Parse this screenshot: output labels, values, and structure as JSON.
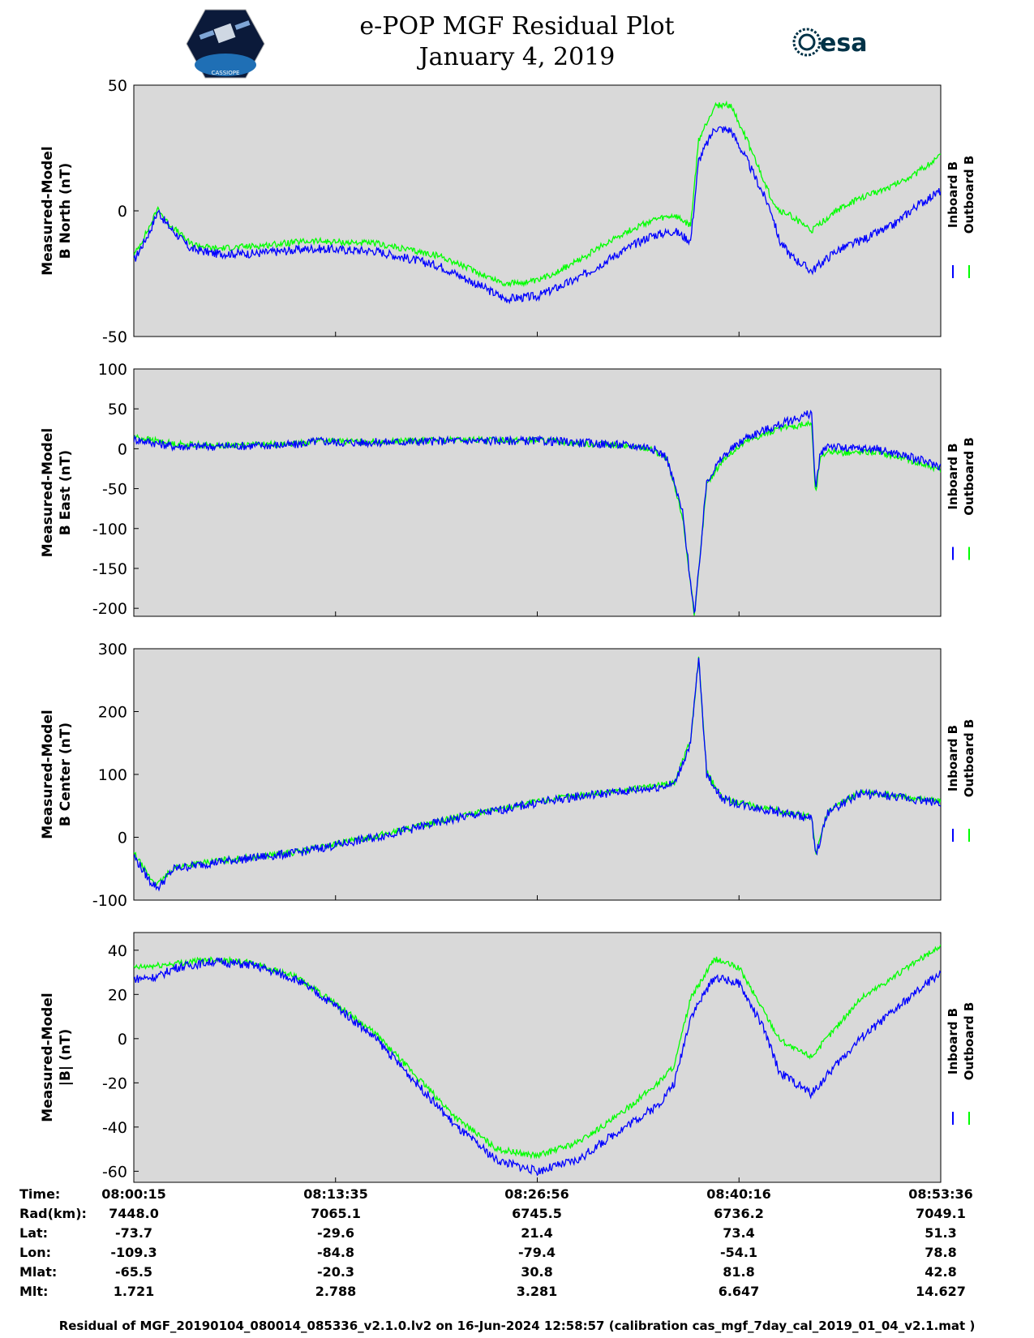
{
  "header": {
    "title_line1": "e-POP MGF Residual Plot",
    "title_line2": "January 4, 2019",
    "left_logo_text": "CASSIOPE",
    "right_logo_text": "esa"
  },
  "colors": {
    "inboard": "#0000ff",
    "outboard": "#00ff00",
    "plot_background": "#d9d9d9"
  },
  "chart_data": [
    {
      "type": "line",
      "ylabel_line1": "Measured-Model",
      "ylabel_line2": "B North (nT)",
      "ylim": [
        -50,
        50
      ],
      "yticks": [
        -50,
        0,
        50
      ],
      "legend": [
        "Inboard B",
        "Outboard B"
      ],
      "x": [
        0,
        0.02,
        0.03,
        0.04,
        0.07,
        0.1,
        0.15,
        0.22,
        0.3,
        0.38,
        0.43,
        0.46,
        0.5,
        0.55,
        0.6,
        0.64,
        0.67,
        0.69,
        0.7,
        0.72,
        0.74,
        0.76,
        0.79,
        0.8,
        0.815,
        0.84,
        0.87,
        0.9,
        0.94,
        0.97,
        1.0
      ],
      "series": [
        {
          "name": "Inboard B",
          "values": [
            -20,
            -8,
            0,
            -5,
            -15,
            -17,
            -17,
            -15,
            -16,
            -22,
            -30,
            -35,
            -34,
            -27,
            -17,
            -10,
            -8,
            -12,
            20,
            33,
            32,
            20,
            0,
            -12,
            -18,
            -24,
            -16,
            -12,
            -6,
            2,
            8
          ]
        },
        {
          "name": "Outboard B",
          "values": [
            -18,
            -6,
            1,
            -4,
            -13,
            -15,
            -14,
            -12,
            -13,
            -18,
            -25,
            -29,
            -28,
            -20,
            -10,
            -4,
            -2,
            -6,
            28,
            42,
            42,
            28,
            5,
            0,
            -2,
            -8,
            0,
            5,
            10,
            15,
            22
          ]
        }
      ]
    },
    {
      "type": "line",
      "ylabel_line1": "Measured-Model",
      "ylabel_line2": "B East (nT)",
      "ylim": [
        -210,
        100
      ],
      "yticks": [
        -200,
        -150,
        -100,
        -50,
        0,
        50,
        100
      ],
      "legend": [
        "Inboard B",
        "Outboard B"
      ],
      "x": [
        0,
        0.05,
        0.1,
        0.2,
        0.23,
        0.25,
        0.3,
        0.4,
        0.5,
        0.55,
        0.6,
        0.64,
        0.66,
        0.68,
        0.695,
        0.71,
        0.73,
        0.76,
        0.8,
        0.84,
        0.845,
        0.85,
        0.86,
        0.88,
        0.92,
        0.96,
        1.0
      ],
      "series": [
        {
          "name": "Inboard B",
          "values": [
            12,
            3,
            3,
            5,
            10,
            8,
            8,
            10,
            10,
            8,
            5,
            2,
            -10,
            -80,
            -210,
            -40,
            -10,
            15,
            30,
            45,
            -55,
            -10,
            5,
            0,
            0,
            -10,
            -22
          ]
        },
        {
          "name": "Outboard B",
          "values": [
            15,
            6,
            4,
            6,
            11,
            9,
            9,
            11,
            11,
            7,
            4,
            0,
            -12,
            -85,
            -210,
            -45,
            -14,
            10,
            25,
            32,
            -60,
            -14,
            -2,
            -5,
            -4,
            -14,
            -26
          ]
        }
      ]
    },
    {
      "type": "line",
      "ylabel_line1": "Measured-Model",
      "ylabel_line2": "B Center (nT)",
      "ylim": [
        -100,
        300
      ],
      "yticks": [
        -100,
        0,
        100,
        200,
        300
      ],
      "legend": [
        "Inboard B",
        "Outboard B"
      ],
      "x": [
        0,
        0.02,
        0.03,
        0.05,
        0.1,
        0.2,
        0.3,
        0.4,
        0.5,
        0.55,
        0.6,
        0.64,
        0.67,
        0.69,
        0.7,
        0.71,
        0.73,
        0.76,
        0.8,
        0.84,
        0.845,
        0.86,
        0.9,
        0.94,
        0.97,
        1.0
      ],
      "series": [
        {
          "name": "Inboard B",
          "values": [
            -30,
            -70,
            -80,
            -50,
            -40,
            -25,
            0,
            30,
            55,
            65,
            72,
            78,
            85,
            150,
            285,
            100,
            60,
            50,
            40,
            30,
            -30,
            40,
            70,
            65,
            60,
            55
          ]
        },
        {
          "name": "Outboard B",
          "values": [
            -25,
            -65,
            -75,
            -48,
            -38,
            -24,
            2,
            32,
            57,
            67,
            74,
            80,
            87,
            155,
            285,
            102,
            62,
            52,
            42,
            32,
            -25,
            42,
            72,
            67,
            62,
            57
          ]
        }
      ]
    },
    {
      "type": "line",
      "ylabel_line1": "Measured-Model",
      "ylabel_line2": "|B| (nT)",
      "ylim": [
        -65,
        48
      ],
      "yticks": [
        -60,
        -40,
        -20,
        0,
        20,
        40
      ],
      "legend": [
        "Inboard B",
        "Outboard B"
      ],
      "x": [
        0,
        0.03,
        0.05,
        0.1,
        0.15,
        0.2,
        0.25,
        0.3,
        0.35,
        0.4,
        0.45,
        0.5,
        0.55,
        0.6,
        0.65,
        0.67,
        0.69,
        0.72,
        0.75,
        0.78,
        0.8,
        0.82,
        0.84,
        0.87,
        0.9,
        0.95,
        1.0
      ],
      "series": [
        {
          "name": "Inboard B",
          "values": [
            27,
            28,
            32,
            35,
            33,
            27,
            15,
            0,
            -20,
            -40,
            -55,
            -60,
            -55,
            -42,
            -30,
            -20,
            10,
            28,
            25,
            5,
            -15,
            -20,
            -25,
            -12,
            0,
            15,
            30
          ]
        },
        {
          "name": "Outboard B",
          "values": [
            32,
            33,
            34,
            36,
            34,
            28,
            16,
            2,
            -17,
            -36,
            -50,
            -53,
            -47,
            -35,
            -20,
            -12,
            18,
            36,
            32,
            13,
            0,
            -5,
            -8,
            5,
            18,
            30,
            42
          ]
        }
      ]
    }
  ],
  "time_axis": {
    "rows": [
      {
        "label": "Time:",
        "values": [
          "08:00:15",
          "08:13:35",
          "08:26:56",
          "08:40:16",
          "08:53:36"
        ]
      },
      {
        "label": "Rad(km):",
        "values": [
          "7448.0",
          "7065.1",
          "6745.5",
          "6736.2",
          "7049.1"
        ]
      },
      {
        "label": "Lat:",
        "values": [
          "-73.7",
          "-29.6",
          "21.4",
          "73.4",
          "51.3"
        ]
      },
      {
        "label": "Lon:",
        "values": [
          "-109.3",
          "-84.8",
          "-79.4",
          "-54.1",
          "78.8"
        ]
      },
      {
        "label": "Mlat:",
        "values": [
          "-65.5",
          "-20.3",
          "30.8",
          "81.8",
          "42.8"
        ]
      },
      {
        "label": "Mlt:",
        "values": [
          "1.721",
          "2.788",
          "3.281",
          "6.647",
          "14.627"
        ]
      }
    ]
  },
  "footer": "Residual of MGF_20190104_080014_085336_v2.1.0.lv2 on 16-Jun-2024 12:58:57 (calibration cas_mgf_7day_cal_2019_01_04_v2.1.mat )"
}
